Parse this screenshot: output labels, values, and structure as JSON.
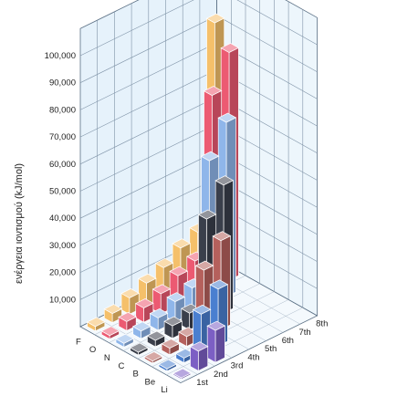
{
  "chart_data": {
    "type": "bar",
    "subtype": "3d-bar",
    "ylabel": "ενέργεια ιοντισμού  (kJ/mol)",
    "yticks": [
      "10,000",
      "20,000",
      "30,000",
      "40,000",
      "50,000",
      "60,000",
      "70,000",
      "80,000",
      "90,000",
      "100,000"
    ],
    "ylim": [
      0,
      110000
    ],
    "elements": [
      "F",
      "O",
      "N",
      "C",
      "B",
      "Be",
      "Li"
    ],
    "ionizations": [
      "1st",
      "2nd",
      "3rd",
      "4th",
      "5th",
      "6th",
      "7th",
      "8th"
    ],
    "series": [
      {
        "name": "F",
        "color": "#f5c06a",
        "values": [
          1681,
          3374,
          6050,
          8408,
          11023,
          15164,
          17868,
          92038
        ]
      },
      {
        "name": "O",
        "color": "#ec5a72",
        "values": [
          1314,
          3388,
          5300,
          7469,
          10989,
          13326,
          71330,
          84078
        ]
      },
      {
        "name": "N",
        "color": "#8fb6ea",
        "values": [
          1402,
          2856,
          4578,
          7475,
          9445,
          53267,
          64360,
          null
        ]
      },
      {
        "name": "C",
        "color": "#3a3f4b",
        "values": [
          1086,
          2353,
          4620,
          6223,
          37831,
          47277,
          null,
          null
        ]
      },
      {
        "name": "B",
        "color": "#b5605c",
        "values": [
          801,
          2427,
          3660,
          25026,
          32827,
          null,
          null,
          null
        ]
      },
      {
        "name": "Be",
        "color": "#4a7fd0",
        "values": [
          900,
          1757,
          14849,
          21007,
          null,
          null,
          null,
          null
        ]
      },
      {
        "name": "Li",
        "color": "#7c5fc4",
        "values": [
          520,
          7298,
          11815,
          null,
          null,
          null,
          null,
          null
        ]
      }
    ],
    "grid": true
  }
}
